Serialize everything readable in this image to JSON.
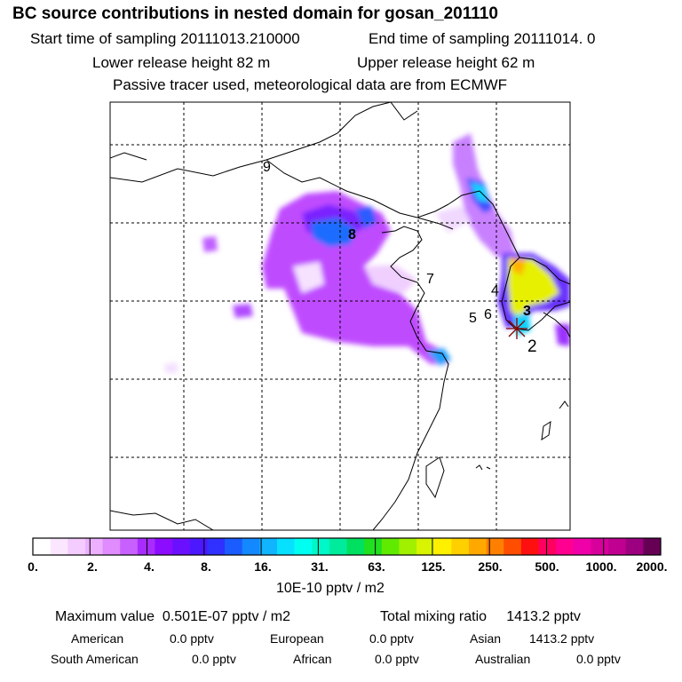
{
  "header": {
    "title": "BC  source contributions in nested domain for gosan_201110",
    "start": "Start time of sampling 20111013.210000",
    "end": "End time of sampling 20111014.     0",
    "lower": "Lower release height   82 m",
    "upper": "Upper release height   62 m",
    "note": "Passive tracer used, meteorological data are from ECMWF"
  },
  "map": {
    "labels": [
      "9",
      "8",
      "7",
      "4",
      "5",
      "6",
      "3",
      "2"
    ]
  },
  "colorbar": {
    "ticks": [
      "0.",
      "2.",
      "4.",
      "8.",
      "16.",
      "31.",
      "63.",
      "125.",
      "250.",
      "500.",
      "1000.",
      "2000."
    ],
    "unit": "10E-10 pptv / m2",
    "colors": [
      "#ffffff",
      "#fbe6ff",
      "#f4ccff",
      "#ecb0ff",
      "#e08cff",
      "#c860ff",
      "#a82cff",
      "#8c0cff",
      "#6a10ff",
      "#4c18ff",
      "#3030ff",
      "#1a5cff",
      "#1488ff",
      "#10b4ff",
      "#08e0ff",
      "#00fff0",
      "#00f8c8",
      "#00ec9c",
      "#00e060",
      "#20e020",
      "#60ea00",
      "#a0f000",
      "#d8f400",
      "#fff000",
      "#ffd000",
      "#ffa800",
      "#ff8000",
      "#ff4e00",
      "#ff1010",
      "#ff0060",
      "#ff0090",
      "#f000a8",
      "#d8009c",
      "#c00090",
      "#9c0080",
      "#660055"
    ]
  },
  "summary": {
    "max_label": "Maximum value",
    "max_value": "0.501E-07 pptv / m2",
    "total_label": "Total mixing ratio",
    "total_value": "1413.2 pptv",
    "regions": [
      {
        "name": "American",
        "value": "0.0 pptv"
      },
      {
        "name": "European",
        "value": "0.0 pptv"
      },
      {
        "name": "Asian",
        "value": "1413.2 pptv"
      },
      {
        "name": "South American",
        "value": "0.0 pptv"
      },
      {
        "name": "African",
        "value": "0.0 pptv"
      },
      {
        "name": "Australian",
        "value": "0.0 pptv"
      }
    ]
  }
}
